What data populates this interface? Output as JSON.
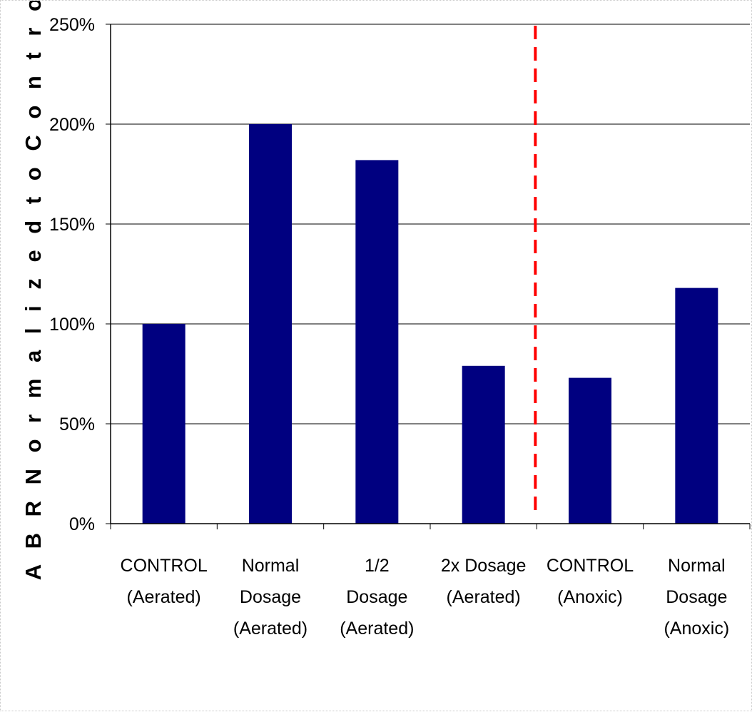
{
  "chart_data": {
    "type": "bar",
    "title": "",
    "xlabel": "",
    "ylabel": "A B R  N o r m a l i z e d  t o  C o n t r o l",
    "categories": [
      [
        "CONTROL",
        "(Aerated)"
      ],
      [
        "Normal",
        "Dosage",
        "(Aerated)"
      ],
      [
        "1/2",
        "Dosage",
        "(Aerated)"
      ],
      [
        "2x Dosage",
        "(Aerated)"
      ],
      [
        "CONTROL",
        "(Anoxic)"
      ],
      [
        "Normal",
        "Dosage",
        "(Anoxic)"
      ]
    ],
    "values": [
      100,
      200,
      182,
      79,
      73,
      118
    ],
    "ylim": [
      0,
      250
    ],
    "yticks": [
      0,
      50,
      100,
      150,
      200,
      250
    ],
    "ytick_labels": [
      "0%",
      "50%",
      "100%",
      "150%",
      "200%",
      "250%"
    ],
    "grid": true,
    "legend": "none",
    "bar_color": "#000080",
    "divider": {
      "after_category": 4,
      "color": "#ff0000",
      "style": "dashed"
    }
  }
}
